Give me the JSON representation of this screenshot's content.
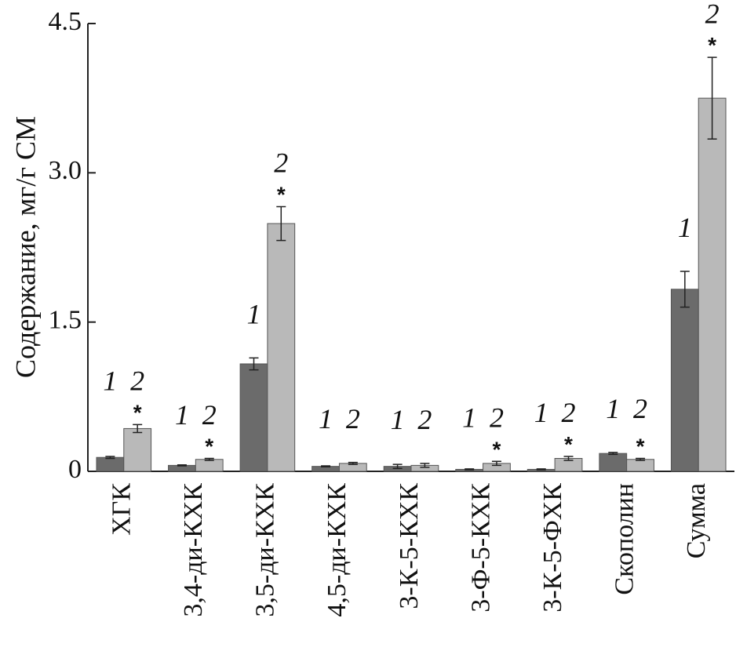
{
  "chart_data": {
    "type": "bar",
    "y_label": "Содержание, мг/г СМ",
    "categories": [
      "ХГК",
      "3,4-ди-КХК",
      "3,5-ди-КХК",
      "4,5-ди-КХК",
      "3-К-5-КХК",
      "3-Ф-5-КХК",
      "3-К-5-ФХК",
      "Скополин",
      "Сумма"
    ],
    "series": [
      {
        "name": "1",
        "color": "#6b6b6b",
        "values": [
          0.14,
          0.06,
          1.08,
          0.05,
          0.05,
          0.02,
          0.02,
          0.18,
          1.83
        ],
        "errors": [
          0.01,
          0.005,
          0.06,
          0.005,
          0.02,
          0.005,
          0.005,
          0.01,
          0.18
        ],
        "annotations": [
          null,
          null,
          null,
          null,
          null,
          null,
          null,
          null,
          null
        ]
      },
      {
        "name": "2",
        "color": "#b9b9b9",
        "values": [
          0.43,
          0.12,
          2.49,
          0.08,
          0.06,
          0.08,
          0.13,
          0.12,
          3.75
        ],
        "errors": [
          0.04,
          0.01,
          0.17,
          0.01,
          0.02,
          0.02,
          0.02,
          0.01,
          0.41
        ],
        "annotations": [
          "*",
          "*",
          "*",
          null,
          null,
          "*",
          "*",
          "*",
          "*"
        ]
      }
    ],
    "ylim": [
      0,
      4.5
    ],
    "yticks": [
      0,
      1.5,
      {
        "value": 3,
        "label": "3.0"
      },
      4.5
    ]
  }
}
